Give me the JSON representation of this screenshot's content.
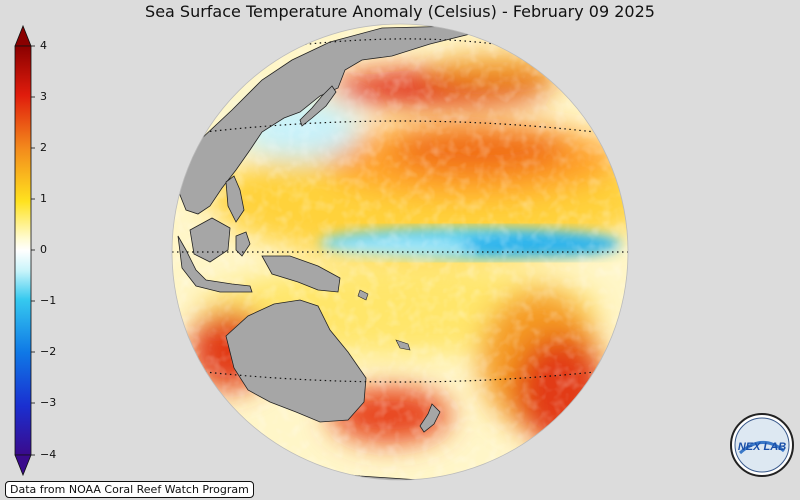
{
  "title": "Sea Surface Temperature Anomaly (Celsius) - February 09 2025",
  "colorbar": {
    "ticks": [
      "4",
      "3",
      "2",
      "1",
      "0",
      "−1",
      "−2",
      "−3",
      "−4"
    ],
    "colors": [
      "#3a0a8c",
      "#1a4fe0",
      "#19b7ef",
      "#ffffff",
      "#fffa3a",
      "#ffb21c",
      "#f05a12",
      "#b00000"
    ],
    "range": [
      -4,
      4
    ]
  },
  "credit": "Data from NOAA Coral Reef Watch Program",
  "logo": {
    "icon": "nex-lab-logo",
    "text": "NEX LAB"
  },
  "map": {
    "projection": "orthographic",
    "center": "Pacific Ocean",
    "land_color": "#a6a6a6",
    "regions": [
      "east-asia",
      "maritime-continent",
      "australia",
      "new-zealand",
      "equatorial-pacific-cold-tongue"
    ]
  }
}
